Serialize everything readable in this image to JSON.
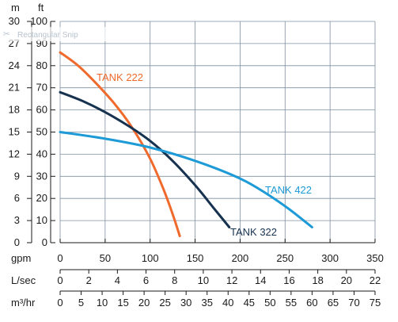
{
  "overlay": {
    "label": "Rectangular Snip",
    "icon": "scissors-icon"
  },
  "colors": {
    "grid": "#7f8fa0",
    "axis": "#1a1a1a",
    "tank222": "#ef6a2c",
    "tank322": "#17324f",
    "tank422": "#1e9ad6"
  },
  "chart_data": {
    "type": "line",
    "title": "",
    "grid": true,
    "axes": {
      "left_outer": {
        "unit": "m",
        "min": 0,
        "max": 30,
        "ticks": [
          0,
          3,
          6,
          9,
          12,
          15,
          18,
          21,
          24,
          27,
          30
        ]
      },
      "left_inner": {
        "unit": "ft",
        "min": 0,
        "max": 100,
        "ticks": [
          0,
          10,
          20,
          30,
          40,
          50,
          60,
          70,
          80,
          90,
          100
        ]
      },
      "x_gpm": {
        "unit": "gpm",
        "min": 0,
        "max": 350,
        "ticks": [
          0,
          50,
          100,
          150,
          200,
          250,
          300,
          350
        ]
      },
      "x_lsec": {
        "unit": "L/sec",
        "min": 0,
        "max": 22,
        "ticks": [
          0,
          2,
          4,
          6,
          8,
          10,
          12,
          14,
          16,
          18,
          20,
          22
        ]
      },
      "x_m3hr": {
        "unit": "m³/hr",
        "min": 0,
        "max": 75,
        "ticks": [
          0,
          5,
          10,
          15,
          20,
          25,
          30,
          35,
          40,
          45,
          50,
          55,
          60,
          65,
          70,
          75
        ]
      }
    },
    "series": [
      {
        "name": "TANK 222",
        "color": "#ef6a2c",
        "x_gpm": [
          0,
          20,
          40,
          60,
          80,
          100,
          115,
          125,
          133
        ],
        "y_ft": [
          86,
          80,
          72,
          63,
          52,
          38,
          24,
          13,
          3
        ]
      },
      {
        "name": "TANK 322",
        "color": "#17324f",
        "x_gpm": [
          0,
          25,
          50,
          75,
          100,
          125,
          150,
          170,
          188
        ],
        "y_ft": [
          68,
          64,
          59,
          53,
          46,
          37,
          26,
          16,
          7
        ]
      },
      {
        "name": "TANK 422",
        "color": "#1e9ad6",
        "x_gpm": [
          0,
          50,
          100,
          150,
          200,
          230,
          255,
          280
        ],
        "y_ft": [
          50,
          47,
          43,
          37,
          29,
          22,
          15,
          7
        ]
      }
    ]
  }
}
